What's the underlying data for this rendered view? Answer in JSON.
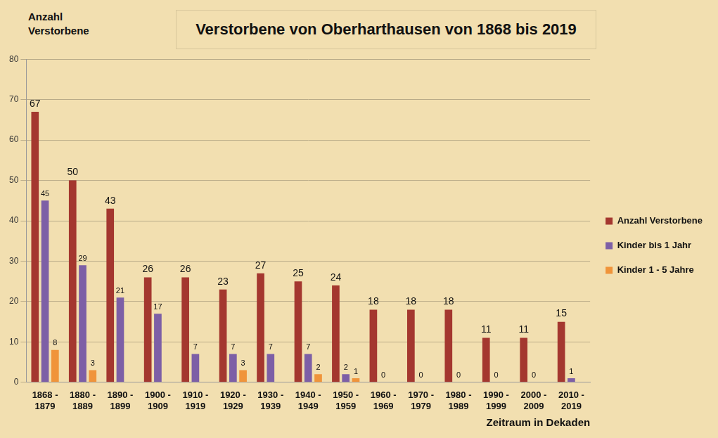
{
  "chart_data": {
    "type": "bar",
    "title": "Verstorbene von Oberharthausen von 1868 bis 2019",
    "y_label": "Anzahl Verstorbene",
    "x_label": "Zeitraum in Dekaden",
    "categories": [
      "1868 - 1879",
      "1880 - 1889",
      "1890 - 1899",
      "1900 - 1909",
      "1910 - 1919",
      "1920 - 1929",
      "1930 - 1939",
      "1940 - 1949",
      "1950 - 1959",
      "1960 - 1969",
      "1970 - 1979",
      "1980 - 1989",
      "1990 - 1999",
      "2000 - 2009",
      "2010 - 2019"
    ],
    "series": [
      {
        "name": "Anzahl Verstorbene",
        "color": "#a4372f",
        "values": [
          67,
          50,
          43,
          26,
          26,
          23,
          27,
          25,
          24,
          18,
          18,
          18,
          11,
          11,
          15
        ]
      },
      {
        "name": "Kinder bis 1 Jahr",
        "color": "#7d5fa6",
        "values": [
          45,
          29,
          21,
          17,
          7,
          7,
          7,
          7,
          2,
          0,
          0,
          0,
          0,
          0,
          1
        ]
      },
      {
        "name": "Kinder 1 - 5 Jahre",
        "color": "#f0943a",
        "values": [
          8,
          3,
          null,
          null,
          null,
          3,
          null,
          2,
          1,
          null,
          null,
          null,
          null,
          null,
          null
        ]
      }
    ],
    "ylim": [
      0,
      80
    ],
    "yticks": [
      0,
      10,
      20,
      30,
      40,
      50,
      60,
      70,
      80
    ],
    "grid": true,
    "legend": "right",
    "data_labels": true
  }
}
